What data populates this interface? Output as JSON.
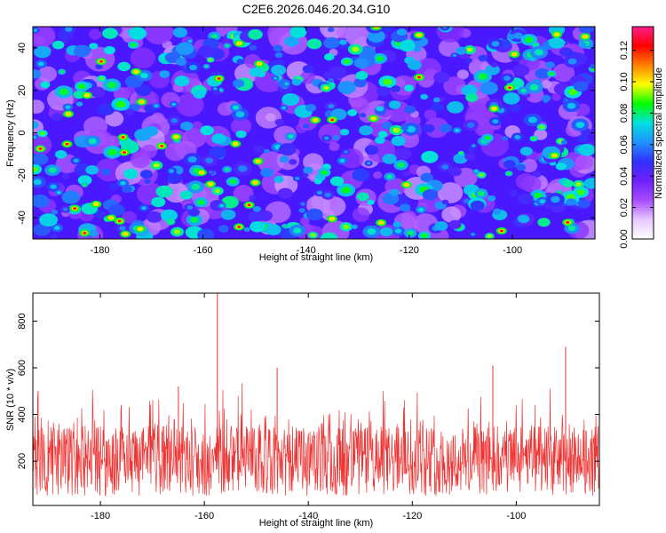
{
  "title": "C2E6.2026.046.20.34.G10",
  "chart_data": [
    {
      "type": "heatmap",
      "name": "spectrogram",
      "xlabel": "Height of straight line (km)",
      "ylabel": "Frequency (Hz)",
      "xlim": [
        -193,
        -84
      ],
      "ylim": [
        -50,
        50
      ],
      "xticks": [
        -180,
        -160,
        -140,
        -120,
        -100
      ],
      "yticks": [
        -40,
        -20,
        0,
        20,
        40
      ],
      "colorbar": {
        "label": "Normalized spectral amplitude",
        "range": [
          0,
          0.135
        ],
        "ticks": [
          0.0,
          0.02,
          0.04,
          0.06,
          0.08,
          0.1,
          0.12
        ],
        "tick_labels": [
          "0.00",
          "0.02",
          "0.04",
          "0.06",
          "0.08",
          "0.10",
          "0.12"
        ],
        "colors": [
          "#ffffff",
          "#e8c8ff",
          "#a64cff",
          "#7020ff",
          "#3030ff",
          "#2090ff",
          "#00e0e0",
          "#00ff00",
          "#ffff00",
          "#ff8000",
          "#ff0000",
          "#ff1e8c"
        ]
      },
      "description_values": "noise-dominated field of amplitude blobs, mostly 0.01-0.05, scattered peaks up to ~0.12"
    },
    {
      "type": "line",
      "name": "snr-trace",
      "xlabel": "Height of straight line (km)",
      "ylabel": "SNR (10 * v/v)",
      "xlim": [
        -193,
        -84
      ],
      "ylim": [
        10,
        920
      ],
      "xticks": [
        -180,
        -160,
        -140,
        -120,
        -100
      ],
      "yticks": [
        200,
        400,
        600,
        800
      ],
      "line_color": "#ee3333",
      "baseline": 200,
      "peaks": [
        {
          "x": -157.5,
          "y": 920
        },
        {
          "x": -90.5,
          "y": 690
        },
        {
          "x": -104.5,
          "y": 610
        },
        {
          "x": -146,
          "y": 600
        },
        {
          "x": -165,
          "y": 520
        },
        {
          "x": -192,
          "y": 500
        }
      ]
    }
  ]
}
